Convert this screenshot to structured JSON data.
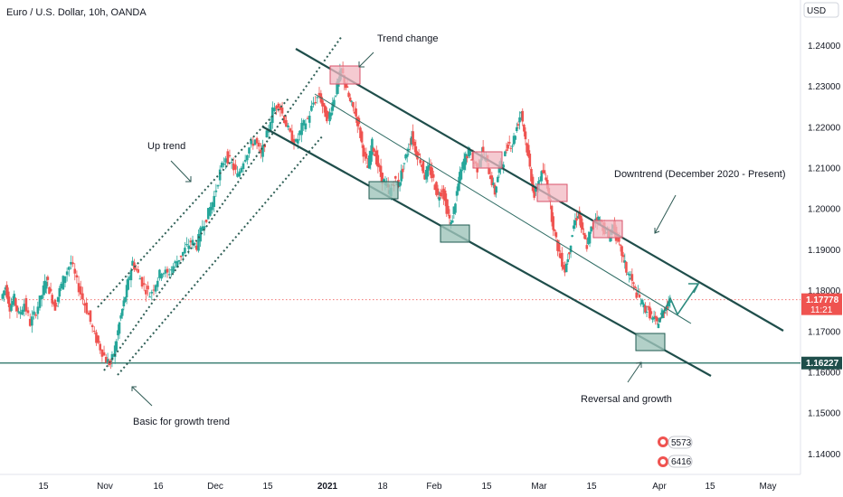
{
  "chart_title": "Euro / U.S. Dollar, 10h, OANDA",
  "currency_label": "USD",
  "colors": {
    "up": "#26a69a",
    "down": "#ef5350",
    "channel": "#1f4e4b",
    "channel_thin": "#2e6b63",
    "support_line": "#1f6b5f",
    "arrow": "#2e7d6f",
    "box_red_fill": "#f2b8c1",
    "box_red_stroke": "#d9536a",
    "box_green_fill": "#9fc4ba",
    "box_green_stroke": "#1f5a50",
    "price_tag": "#ef5350",
    "support_tag": "#1f4e4b",
    "grid": "#f0f3fa",
    "axis_text": "#131722"
  },
  "chart_data": {
    "type": "candlestick",
    "title": "Euro / U.S. Dollar, 10h, OANDA",
    "ylim": [
      1.135,
      1.2485
    ],
    "yticks": [
      "1.24000",
      "1.23000",
      "1.22000",
      "1.21000",
      "1.20000",
      "1.19000",
      "1.18000",
      "1.17000",
      "1.16000",
      "1.15000",
      "1.14000"
    ],
    "ytick_values": [
      1.24,
      1.23,
      1.22,
      1.21,
      1.2,
      1.19,
      1.18,
      1.17,
      1.16,
      1.15,
      1.14
    ],
    "xticks": [
      "15",
      "Nov",
      "16",
      "Dec",
      "15",
      "2021",
      "18",
      "Feb",
      "15",
      "Mar",
      "15",
      "Apr",
      "15",
      "May"
    ],
    "grid": false,
    "price_path": [
      [
        0,
        1.178
      ],
      [
        0.3,
        1.181
      ],
      [
        0.6,
        1.176
      ],
      [
        0.9,
        1.178
      ],
      [
        1.2,
        1.174
      ],
      [
        1.6,
        1.177
      ],
      [
        2.0,
        1.172
      ],
      [
        2.4,
        1.175
      ],
      [
        2.8,
        1.179
      ],
      [
        3.1,
        1.183
      ],
      [
        3.4,
        1.179
      ],
      [
        3.7,
        1.176
      ],
      [
        4.0,
        1.18
      ],
      [
        4.4,
        1.184
      ],
      [
        4.8,
        1.187
      ],
      [
        5.2,
        1.182
      ],
      [
        5.6,
        1.178
      ],
      [
        6.0,
        1.174
      ],
      [
        6.4,
        1.169
      ],
      [
        6.8,
        1.166
      ],
      [
        7.2,
        1.163
      ],
      [
        7.5,
        1.162
      ],
      [
        7.8,
        1.166
      ],
      [
        8.1,
        1.172
      ],
      [
        8.4,
        1.177
      ],
      [
        8.7,
        1.182
      ],
      [
        9.0,
        1.187
      ],
      [
        9.4,
        1.184
      ],
      [
        9.8,
        1.181
      ],
      [
        10.2,
        1.179
      ],
      [
        10.6,
        1.182
      ],
      [
        11.0,
        1.185
      ],
      [
        11.4,
        1.184
      ],
      [
        11.8,
        1.186
      ],
      [
        12.2,
        1.188
      ],
      [
        12.6,
        1.19
      ],
      [
        13.0,
        1.192
      ],
      [
        13.4,
        1.191
      ],
      [
        13.8,
        1.196
      ],
      [
        14.2,
        1.199
      ],
      [
        14.6,
        1.203
      ],
      [
        15.0,
        1.209
      ],
      [
        15.4,
        1.213
      ],
      [
        15.8,
        1.211
      ],
      [
        16.2,
        1.208
      ],
      [
        16.6,
        1.212
      ],
      [
        17.0,
        1.215
      ],
      [
        17.4,
        1.217
      ],
      [
        17.8,
        1.213
      ],
      [
        18.2,
        1.218
      ],
      [
        18.6,
        1.224
      ],
      [
        19.0,
        1.226
      ],
      [
        19.4,
        1.222
      ],
      [
        19.8,
        1.218
      ],
      [
        20.2,
        1.216
      ],
      [
        20.6,
        1.22
      ],
      [
        21.0,
        1.222
      ],
      [
        21.4,
        1.226
      ],
      [
        21.8,
        1.228
      ],
      [
        22.1,
        1.224
      ],
      [
        22.4,
        1.222
      ],
      [
        22.7,
        1.226
      ],
      [
        23.0,
        1.23
      ],
      [
        23.3,
        1.234
      ],
      [
        23.6,
        1.23
      ],
      [
        23.9,
        1.226
      ],
      [
        24.2,
        1.224
      ],
      [
        24.5,
        1.22
      ],
      [
        24.8,
        1.214
      ],
      [
        25.1,
        1.21
      ],
      [
        25.4,
        1.216
      ],
      [
        25.7,
        1.212
      ],
      [
        26.0,
        1.208
      ],
      [
        26.3,
        1.206
      ],
      [
        26.6,
        1.204
      ],
      [
        26.9,
        1.207
      ],
      [
        27.2,
        1.206
      ],
      [
        27.5,
        1.21
      ],
      [
        27.8,
        1.214
      ],
      [
        28.1,
        1.218
      ],
      [
        28.4,
        1.214
      ],
      [
        28.7,
        1.212
      ],
      [
        29.0,
        1.208
      ],
      [
        29.3,
        1.21
      ],
      [
        29.6,
        1.207
      ],
      [
        29.9,
        1.203
      ],
      [
        30.2,
        1.205
      ],
      [
        30.5,
        1.2
      ],
      [
        30.8,
        1.196
      ],
      [
        31.1,
        1.202
      ],
      [
        31.4,
        1.208
      ],
      [
        31.7,
        1.212
      ],
      [
        32.0,
        1.214
      ],
      [
        32.3,
        1.212
      ],
      [
        32.6,
        1.21
      ],
      [
        32.9,
        1.214
      ],
      [
        33.2,
        1.212
      ],
      [
        33.5,
        1.208
      ],
      [
        33.8,
        1.204
      ],
      [
        34.1,
        1.21
      ],
      [
        34.4,
        1.212
      ],
      [
        34.7,
        1.216
      ],
      [
        35.0,
        1.216
      ],
      [
        35.3,
        1.22
      ],
      [
        35.6,
        1.224
      ],
      [
        35.9,
        1.217
      ],
      [
        36.2,
        1.21
      ],
      [
        36.5,
        1.203
      ],
      [
        36.8,
        1.207
      ],
      [
        37.1,
        1.209
      ],
      [
        37.4,
        1.206
      ],
      [
        37.7,
        1.198
      ],
      [
        38.0,
        1.192
      ],
      [
        38.3,
        1.188
      ],
      [
        38.6,
        1.185
      ],
      [
        38.9,
        1.19
      ],
      [
        39.2,
        1.196
      ],
      [
        39.5,
        1.199
      ],
      [
        39.8,
        1.194
      ],
      [
        40.1,
        1.191
      ],
      [
        40.4,
        1.195
      ],
      [
        40.7,
        1.198
      ],
      [
        41.0,
        1.197
      ],
      [
        41.3,
        1.195
      ],
      [
        41.6,
        1.193
      ],
      [
        41.9,
        1.196
      ],
      [
        42.2,
        1.192
      ],
      [
        42.5,
        1.189
      ],
      [
        42.8,
        1.185
      ],
      [
        43.1,
        1.183
      ],
      [
        43.4,
        1.18
      ],
      [
        43.7,
        1.178
      ],
      [
        44.0,
        1.176
      ],
      [
        44.3,
        1.175
      ],
      [
        44.6,
        1.173
      ],
      [
        44.9,
        1.172
      ],
      [
        45.2,
        1.174
      ],
      [
        45.5,
        1.176
      ],
      [
        45.8,
        1.178
      ]
    ],
    "support_level": 1.16227,
    "support_label": "1.16227",
    "current_price": 1.17778,
    "current_price_label": "1.17778",
    "countdown_label": "11:21",
    "annotations": [
      "Trend change",
      "Up trend",
      "Downtrend (December 2020 - Present)",
      "Reversal and growth",
      "Basic for growth trend"
    ],
    "corner_badges": [
      "5573",
      "6416"
    ]
  }
}
